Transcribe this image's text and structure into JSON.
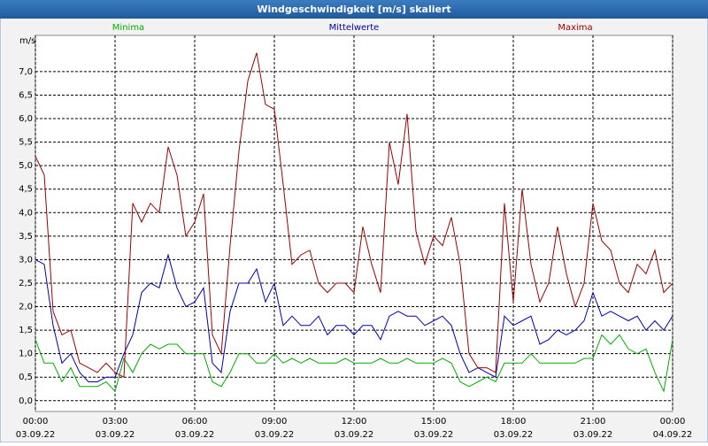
{
  "chart_data": {
    "type": "line",
    "title": "Windgeschwindigkeit [m/s] skaliert",
    "y_label": "m/s",
    "x": [
      0,
      20,
      40,
      60,
      80,
      100,
      120,
      140,
      160,
      180,
      200,
      220,
      240,
      260,
      280,
      300,
      320,
      340,
      360,
      380,
      400,
      420,
      440,
      460,
      480,
      500,
      520,
      540,
      560,
      580,
      600,
      620,
      640,
      660,
      680,
      700,
      720,
      740,
      760,
      780,
      800,
      820,
      840,
      860,
      880,
      900,
      920,
      940,
      960,
      980,
      1000,
      1020,
      1040,
      1060,
      1080,
      1100,
      1120,
      1140,
      1160,
      1180,
      1200,
      1220,
      1240,
      1260,
      1280,
      1300,
      1320,
      1340,
      1360,
      1380,
      1400,
      1420,
      1440
    ],
    "xlim": [
      0,
      1440
    ],
    "xticks": [
      {
        "value": 0,
        "label": "00:00",
        "date": "03.09.22"
      },
      {
        "value": 180,
        "label": "03:00",
        "date": "03.09.22"
      },
      {
        "value": 360,
        "label": "06:00",
        "date": "03.09.22"
      },
      {
        "value": 540,
        "label": "09:00",
        "date": "03.09.22"
      },
      {
        "value": 720,
        "label": "12:00",
        "date": "03.09.22"
      },
      {
        "value": 900,
        "label": "15:00",
        "date": "03.09.22"
      },
      {
        "value": 1080,
        "label": "18:00",
        "date": "03.09.22"
      },
      {
        "value": 1260,
        "label": "21:00",
        "date": "03.09.22"
      },
      {
        "value": 1440,
        "label": "00:00",
        "date": "04.09.22"
      }
    ],
    "ylim": [
      -0.23,
      7.77
    ],
    "yticks": [
      {
        "value": 0,
        "label": "0,0"
      },
      {
        "value": 0.5,
        "label": "0,5"
      },
      {
        "value": 1,
        "label": "1,0"
      },
      {
        "value": 1.5,
        "label": "1,5"
      },
      {
        "value": 2,
        "label": "2,0"
      },
      {
        "value": 2.5,
        "label": "2,5"
      },
      {
        "value": 3,
        "label": "3,0"
      },
      {
        "value": 3.5,
        "label": "3,5"
      },
      {
        "value": 4,
        "label": "4,0"
      },
      {
        "value": 4.5,
        "label": "4,5"
      },
      {
        "value": 5,
        "label": "5,0"
      },
      {
        "value": 5.5,
        "label": "5,5"
      },
      {
        "value": 6,
        "label": "6,0"
      },
      {
        "value": 6.5,
        "label": "6,5"
      },
      {
        "value": 7,
        "label": "7,0"
      }
    ],
    "grid": true,
    "series": [
      {
        "name": "Minima",
        "color": "#00b000",
        "values": [
          1.3,
          0.8,
          0.8,
          0.4,
          0.7,
          0.3,
          0.3,
          0.3,
          0.4,
          0.2,
          0.9,
          0.6,
          1.0,
          1.2,
          1.1,
          1.2,
          1.2,
          1.0,
          1.0,
          1.0,
          0.4,
          0.3,
          0.6,
          1.0,
          1.0,
          0.8,
          0.8,
          1.0,
          0.8,
          0.9,
          0.8,
          0.9,
          0.8,
          0.8,
          0.8,
          0.9,
          0.8,
          0.8,
          0.8,
          0.9,
          0.8,
          0.8,
          0.9,
          0.8,
          0.8,
          0.8,
          0.9,
          0.8,
          0.4,
          0.3,
          0.4,
          0.5,
          0.4,
          0.8,
          0.8,
          0.8,
          1.0,
          0.8,
          0.8,
          0.8,
          0.8,
          0.8,
          0.9,
          0.9,
          1.4,
          1.2,
          1.4,
          1.1,
          1.0,
          1.1,
          0.6,
          0.2,
          1.3
        ]
      },
      {
        "name": "Mittelwerte",
        "color": "#0000b0",
        "values": [
          3.0,
          2.9,
          1.6,
          0.8,
          1.0,
          0.6,
          0.4,
          0.4,
          0.5,
          0.5,
          1.0,
          1.4,
          2.3,
          2.5,
          2.4,
          3.1,
          2.4,
          2.0,
          2.1,
          2.4,
          0.8,
          0.6,
          1.9,
          2.5,
          2.5,
          2.8,
          2.1,
          2.5,
          1.6,
          1.8,
          1.6,
          1.6,
          1.8,
          1.4,
          1.6,
          1.6,
          1.4,
          1.6,
          1.6,
          1.3,
          1.8,
          1.9,
          1.8,
          1.8,
          1.6,
          1.7,
          1.8,
          1.6,
          1.0,
          0.6,
          0.7,
          0.6,
          0.5,
          1.8,
          1.6,
          1.7,
          1.8,
          1.2,
          1.3,
          1.5,
          1.4,
          1.5,
          1.7,
          2.3,
          1.8,
          1.9,
          1.8,
          1.7,
          1.8,
          1.5,
          1.7,
          1.5,
          1.8
        ]
      },
      {
        "name": "Maxima",
        "color": "#a00000",
        "values": [
          5.2,
          4.8,
          1.9,
          1.4,
          1.5,
          0.8,
          0.7,
          0.6,
          0.8,
          0.6,
          0.5,
          4.2,
          3.8,
          4.2,
          4.0,
          5.4,
          4.8,
          3.5,
          3.8,
          4.4,
          1.4,
          1.0,
          3.3,
          5.3,
          6.8,
          7.4,
          6.3,
          6.2,
          4.6,
          2.9,
          3.1,
          3.2,
          2.5,
          2.3,
          2.5,
          2.5,
          2.3,
          3.7,
          2.9,
          2.3,
          5.5,
          4.6,
          6.1,
          3.6,
          2.9,
          3.5,
          3.3,
          3.9,
          2.9,
          1.0,
          0.7,
          0.7,
          0.6,
          4.2,
          2.1,
          4.5,
          2.9,
          2.1,
          2.5,
          3.7,
          2.7,
          2.0,
          2.5,
          4.2,
          3.4,
          3.2,
          2.5,
          2.3,
          2.9,
          2.7,
          3.2,
          2.3,
          2.5
        ]
      }
    ],
    "legend_positions": [
      "left",
      "center",
      "right"
    ]
  }
}
